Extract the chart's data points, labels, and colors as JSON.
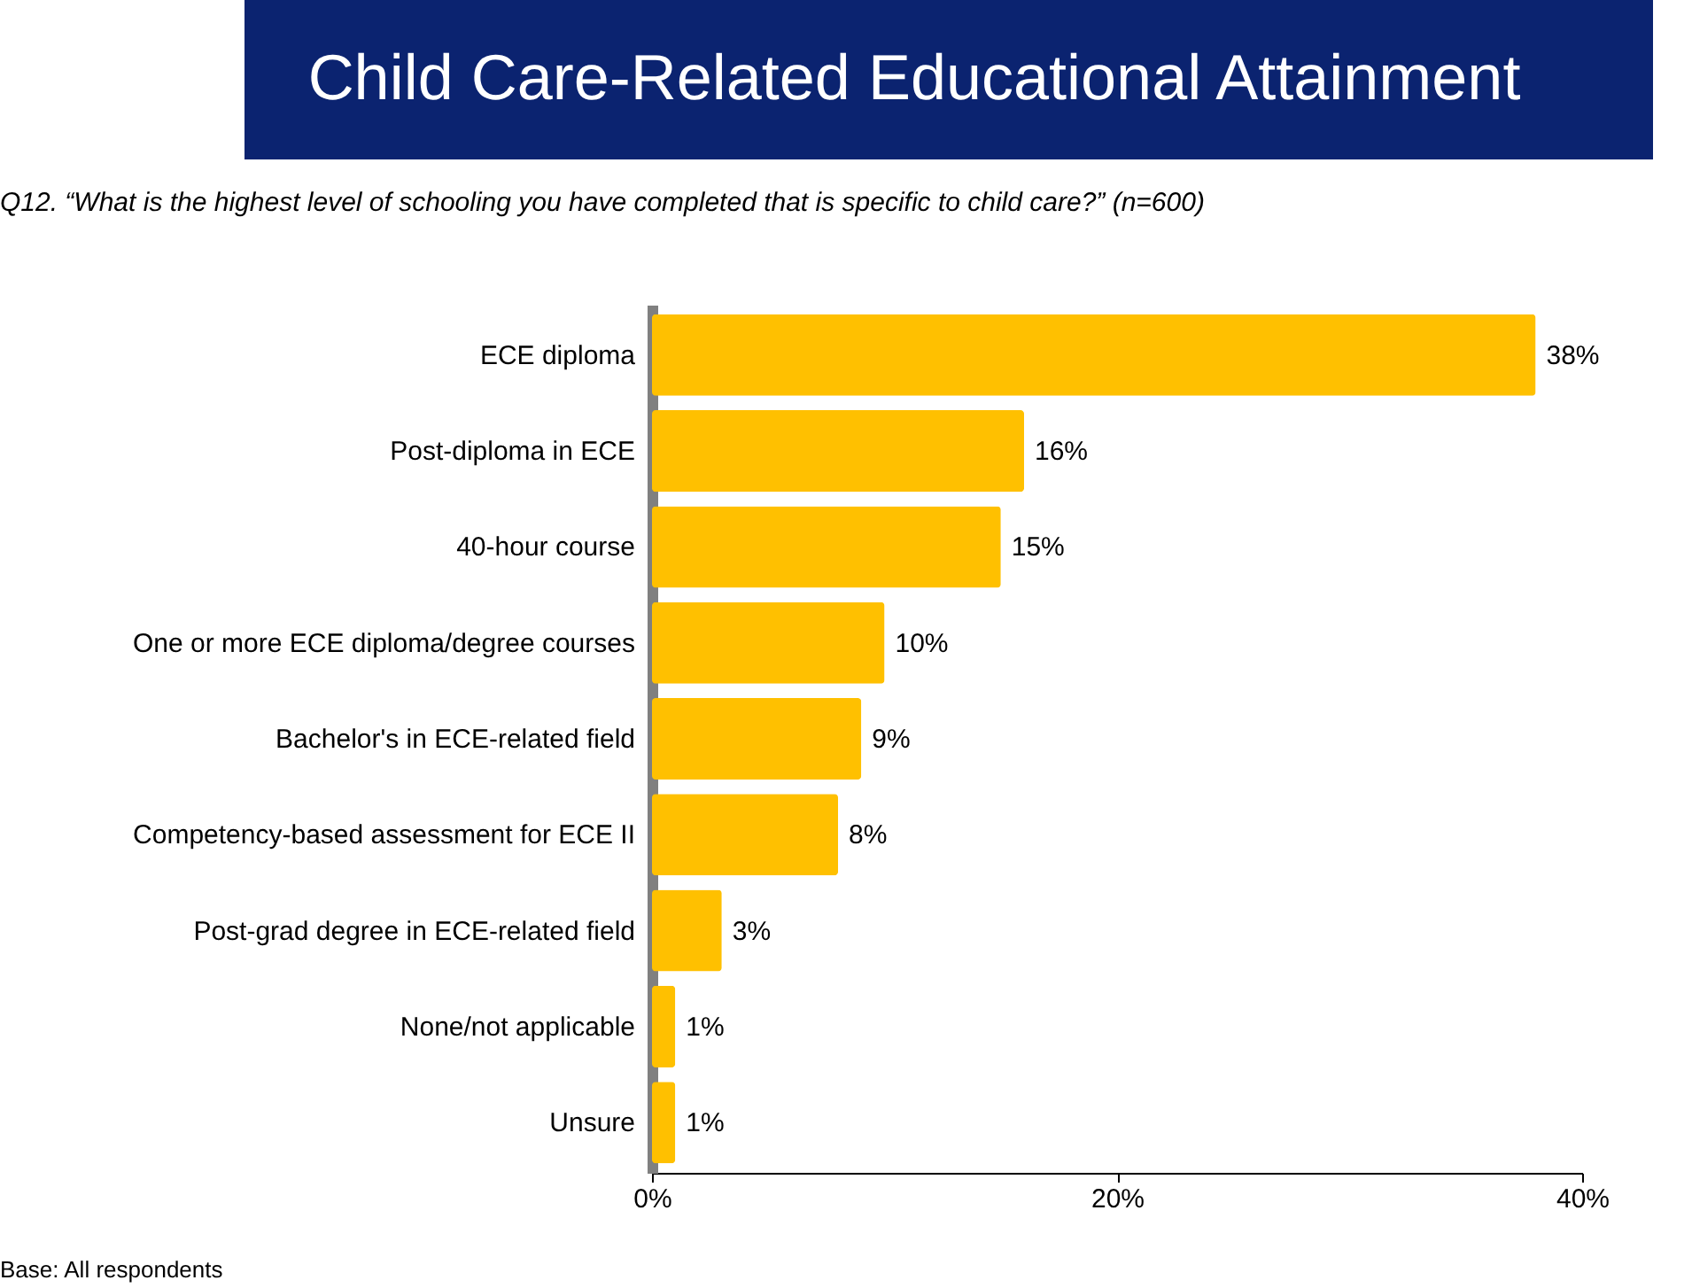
{
  "chart_data": {
    "type": "bar",
    "orientation": "horizontal",
    "title": "Child Care-Related Educational Attainment",
    "subtitle": "Q12. “What is the highest level of schooling you have completed that is specific to child care?” (n=600)",
    "categories": [
      "ECE diploma",
      "Post-diploma in ECE",
      "40-hour course",
      "One or more ECE diploma/degree courses",
      "Bachelor's in ECE-related field",
      "Competency-based assessment for ECE II",
      "Post-grad degree in ECE-related field",
      "None/not applicable",
      "Unsure"
    ],
    "values": [
      38,
      16,
      15,
      10,
      9,
      8,
      3,
      1,
      1
    ],
    "value_labels": [
      "38%",
      "16%",
      "15%",
      "10%",
      "9%",
      "8%",
      "3%",
      "1%",
      "1%"
    ],
    "color": "#ffc000",
    "xlim": [
      0,
      40
    ],
    "xticks": [
      {
        "value": 0,
        "label": "0%"
      },
      {
        "value": 20,
        "label": "20%"
      },
      {
        "value": 40,
        "label": "40%"
      }
    ],
    "grid": false,
    "legend": false,
    "annotations": [
      "Base: All respondents"
    ]
  }
}
